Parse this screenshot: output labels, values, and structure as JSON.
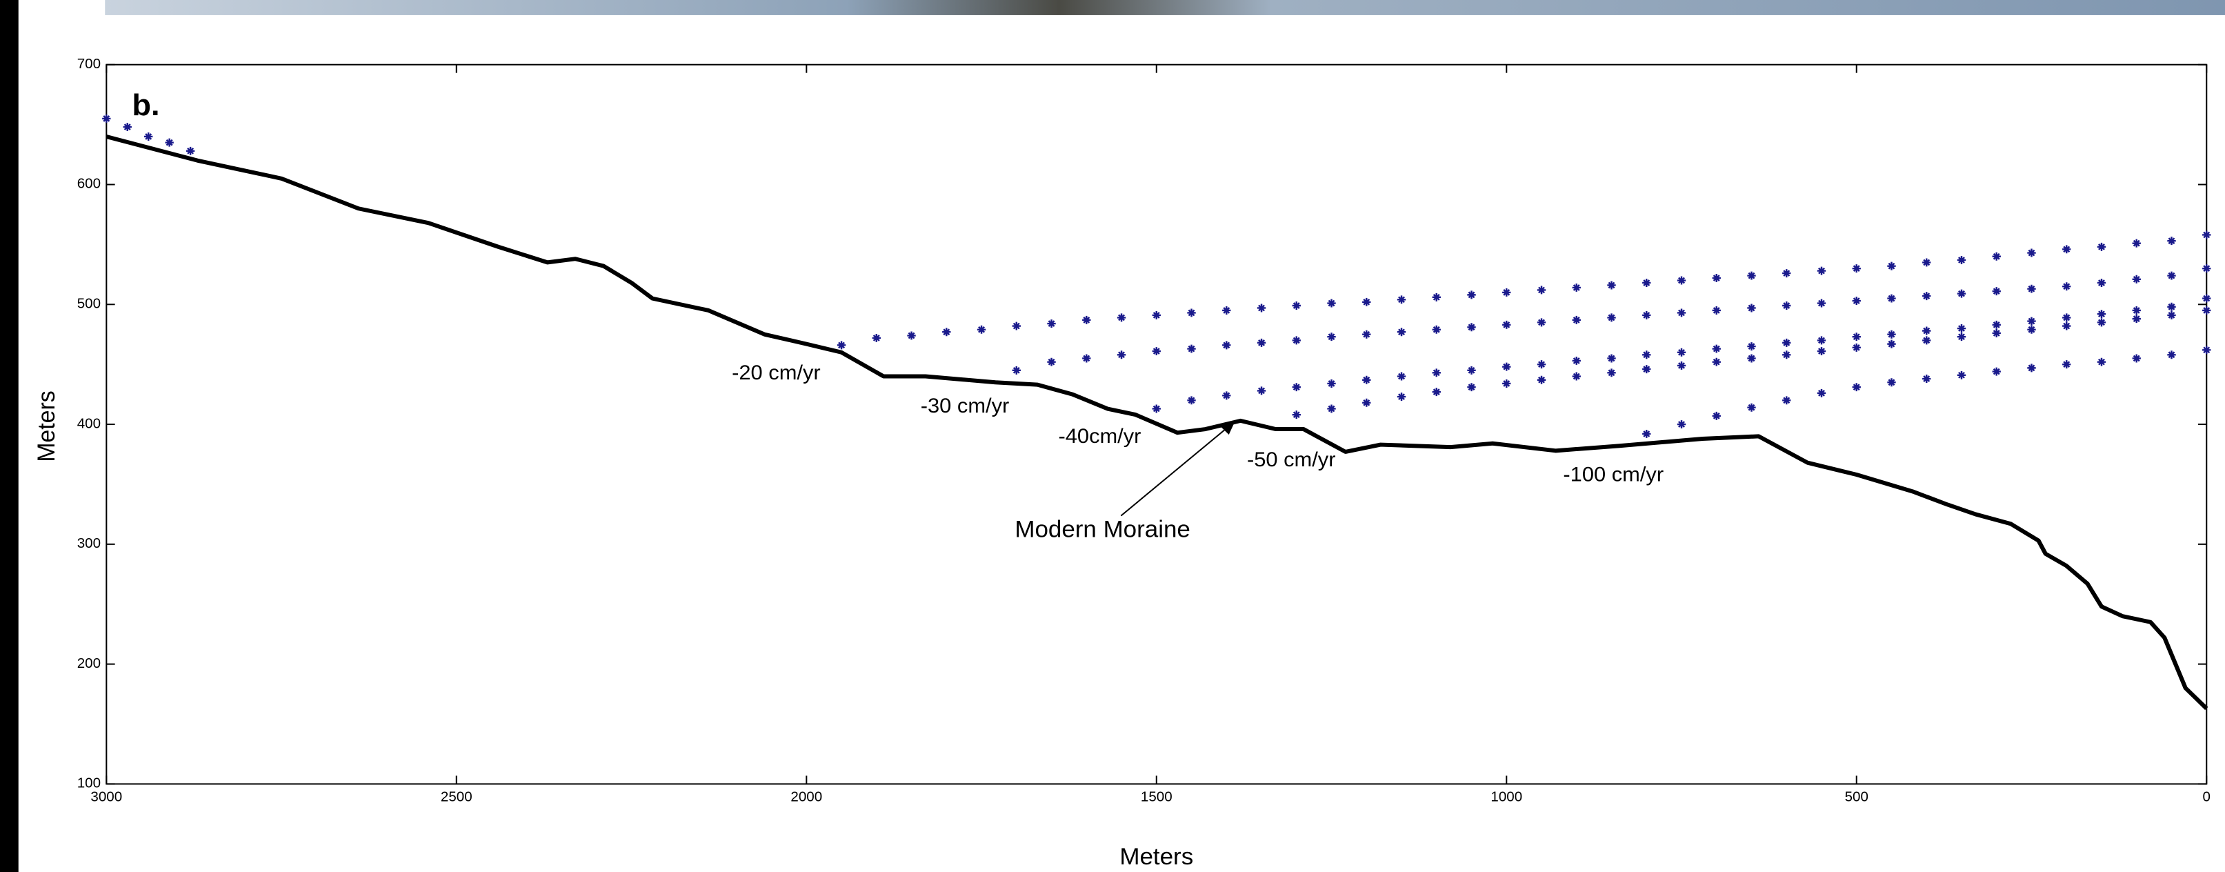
{
  "chart_data": {
    "type": "line",
    "panel_label": "b.",
    "xlabel": "Meters",
    "ylabel": "Meters",
    "xlim": [
      3000,
      0
    ],
    "ylim": [
      100,
      700
    ],
    "xticks": [
      3000,
      2500,
      2000,
      1500,
      1000,
      500,
      0
    ],
    "yticks": [
      100,
      200,
      300,
      400,
      500,
      600,
      700
    ],
    "annotations": [
      "-20 cm/yr",
      "-30 cm/yr",
      "-40cm/yr",
      "-50 cm/yr",
      "-100 cm/yr",
      "Modern Moraine"
    ],
    "series": [
      {
        "style": "line",
        "color": "#000000",
        "x": [
          3000,
          2870,
          2750,
          2640,
          2540,
          2440,
          2370,
          2330,
          2290,
          2250,
          2220,
          2140,
          2060,
          2000,
          1950,
          1890,
          1830,
          1730,
          1670,
          1620,
          1570,
          1530,
          1470,
          1430,
          1380,
          1330,
          1290,
          1230,
          1180,
          1080,
          1020,
          930,
          840,
          720,
          640,
          570,
          500,
          420,
          370,
          330,
          280,
          240,
          230,
          200,
          170,
          150,
          120,
          80,
          60,
          30,
          0
        ],
        "values": [
          640,
          620,
          605,
          580,
          568,
          548,
          535,
          538,
          532,
          518,
          505,
          495,
          475,
          467,
          460,
          440,
          440,
          435,
          433,
          425,
          413,
          408,
          393,
          396,
          403,
          396,
          396,
          377,
          383,
          381,
          384,
          378,
          382,
          388,
          390,
          368,
          358,
          344,
          333,
          325,
          317,
          303,
          292,
          282,
          267,
          248,
          240,
          235,
          222,
          180,
          163
        ]
      },
      {
        "style": "marker",
        "color": "#1a1a8c",
        "x": [
          1950,
          1900,
          1850,
          1800,
          1750,
          1700,
          1650,
          1600,
          1550,
          1500,
          1450,
          1400,
          1350,
          1300,
          1250,
          1200,
          1150,
          1100,
          1050,
          1000,
          950,
          900,
          850,
          800,
          750,
          700,
          650,
          600,
          550,
          500,
          450,
          400,
          350,
          300,
          250,
          200,
          150,
          100,
          50,
          0
        ],
        "values": [
          466,
          472,
          474,
          477,
          479,
          482,
          484,
          487,
          489,
          491,
          493,
          495,
          497,
          499,
          501,
          502,
          504,
          506,
          508,
          510,
          512,
          514,
          516,
          518,
          520,
          522,
          524,
          526,
          528,
          530,
          532,
          535,
          537,
          540,
          543,
          546,
          548,
          551,
          553,
          558
        ]
      },
      {
        "style": "marker",
        "color": "#1a1a8c",
        "x": [
          1700,
          1650,
          1600,
          1550,
          1500,
          1450,
          1400,
          1350,
          1300,
          1250,
          1200,
          1150,
          1100,
          1050,
          1000,
          950,
          900,
          850,
          800,
          750,
          700,
          650,
          600,
          550,
          500,
          450,
          400,
          350,
          300,
          250,
          200,
          150,
          100,
          50,
          0
        ],
        "values": [
          445,
          452,
          455,
          458,
          461,
          463,
          466,
          468,
          470,
          473,
          475,
          477,
          479,
          481,
          483,
          485,
          487,
          489,
          491,
          493,
          495,
          497,
          499,
          501,
          503,
          505,
          507,
          509,
          511,
          513,
          515,
          518,
          521,
          524,
          530
        ]
      },
      {
        "style": "marker",
        "color": "#1a1a8c",
        "x": [
          1500,
          1450,
          1400,
          1350,
          1300,
          1250,
          1200,
          1150,
          1100,
          1050,
          1000,
          950,
          900,
          850,
          800,
          750,
          700,
          650,
          600,
          550,
          500,
          450,
          400,
          350,
          300,
          250,
          200,
          150,
          100,
          50,
          0
        ],
        "values": [
          413,
          420,
          424,
          428,
          431,
          434,
          437,
          440,
          443,
          445,
          448,
          450,
          453,
          455,
          458,
          460,
          463,
          465,
          468,
          470,
          473,
          475,
          478,
          480,
          483,
          486,
          489,
          492,
          495,
          498,
          505
        ]
      },
      {
        "style": "marker",
        "color": "#1a1a8c",
        "x": [
          1300,
          1250,
          1200,
          1150,
          1100,
          1050,
          1000,
          950,
          900,
          850,
          800,
          750,
          700,
          650,
          600,
          550,
          500,
          450,
          400,
          350,
          300,
          250,
          200,
          150,
          100,
          50,
          0
        ],
        "values": [
          408,
          413,
          418,
          423,
          427,
          431,
          434,
          437,
          440,
          443,
          446,
          449,
          452,
          455,
          458,
          461,
          464,
          467,
          470,
          473,
          476,
          479,
          482,
          485,
          488,
          491,
          495
        ]
      },
      {
        "style": "marker",
        "color": "#1a1a8c",
        "x": [
          800,
          750,
          700,
          650,
          600,
          550,
          500,
          450,
          400,
          350,
          300,
          250,
          200,
          150,
          100,
          50,
          0
        ],
        "values": [
          392,
          400,
          407,
          414,
          420,
          426,
          431,
          435,
          438,
          441,
          444,
          447,
          450,
          452,
          455,
          458,
          462
        ]
      },
      {
        "style": "marker",
        "color": "#1a1a8c",
        "x": [
          3000,
          2970,
          2940,
          2910,
          2880
        ],
        "values": [
          655,
          648,
          640,
          635,
          628
        ]
      }
    ]
  }
}
